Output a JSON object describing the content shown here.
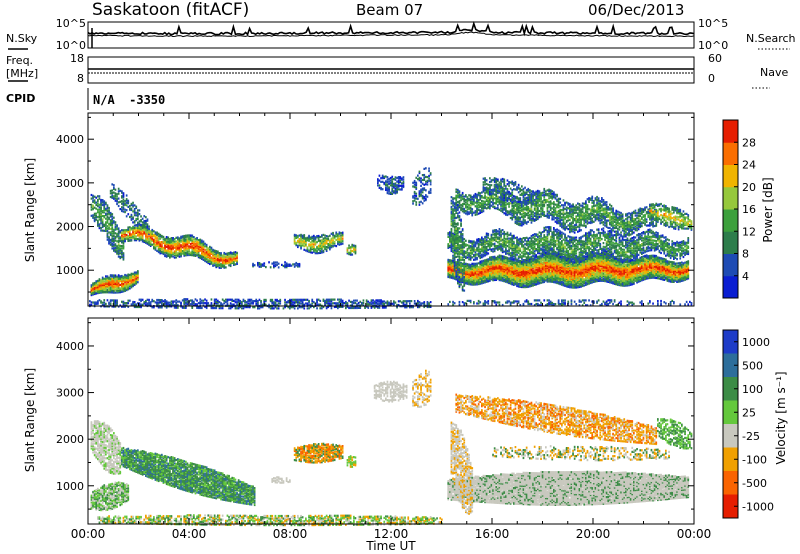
{
  "header": {
    "station": "Saskatoon (fitACF)",
    "beam": "Beam 07",
    "date": "06/Dec/2013"
  },
  "top_panels": {
    "nsky_label": "N.Sky",
    "nsearch_label": "N.Search",
    "noise_ticks_left": [
      "10^5",
      "10^0"
    ],
    "noise_ticks_right": [
      "10^5",
      "10^0"
    ],
    "freq_label": "Freq.",
    "freq_unit": "[MHz]",
    "freq_ticks": [
      "18",
      "8"
    ],
    "nave_label": "Nave",
    "nave_ticks": [
      "60",
      "0"
    ],
    "cpid_label": "CPID",
    "cpid_value": "N/A  -3350"
  },
  "chart_data": [
    {
      "type": "heatmap",
      "name": "power",
      "ylabel": "Slant Range [km]",
      "ylim": [
        180,
        4600
      ],
      "yticks": [
        1000,
        2000,
        3000,
        4000
      ],
      "x_tick_labels": [
        "00:00",
        "04:00",
        "08:00",
        "12:00",
        "16:00",
        "20:00",
        "00:00"
      ],
      "colorbar": {
        "label": "Power [dB]",
        "ticks": [
          "4",
          "8",
          "12",
          "16",
          "20",
          "24",
          "28"
        ],
        "colors": [
          "#0a1ed2",
          "#1e4bb4",
          "#2d7d4b",
          "#3ca03c",
          "#96c83c",
          "#f0b400",
          "#fa6e00",
          "#e61e00"
        ]
      }
    },
    {
      "type": "heatmap",
      "name": "velocity",
      "ylabel": "Slant Range [km]",
      "ylim": [
        180,
        4600
      ],
      "yticks": [
        1000,
        2000,
        3000,
        4000
      ],
      "x_tick_labels": [
        "00:00",
        "04:00",
        "08:00",
        "12:00",
        "16:00",
        "20:00",
        "00:00"
      ],
      "xlabel": "Time UT",
      "colorbar": {
        "label": "Velocity [m s⁻¹]",
        "ticks": [
          "1000",
          "500",
          "100",
          "25",
          "-25",
          "-100",
          "-500",
          "-1000"
        ],
        "colors": [
          "#1e3cc8",
          "#2d6e9b",
          "#3c8c46",
          "#64c83c",
          "#c8c8be",
          "#f0a000",
          "#fa6400",
          "#e61e00"
        ]
      }
    }
  ]
}
